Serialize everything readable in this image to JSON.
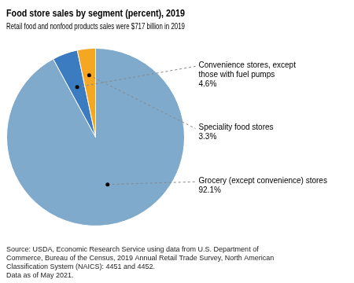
{
  "chart_data": {
    "type": "pie",
    "title": "Food store sales by segment (percent), 2019",
    "subtitle": "Retail food and nonfood products sales were $717 billion in 2019",
    "categories": [
      "Grocery (except convenience) stores",
      "Convenience stores, except\nthose with fuel pumps",
      "Speciality food stores"
    ],
    "values": [
      92.1,
      4.6,
      3.3
    ],
    "value_labels": [
      "92.1%",
      "4.6%",
      "3.3%"
    ],
    "colors": [
      "#7faacc",
      "#3b7bbf",
      "#f5a623"
    ],
    "data_labels": true,
    "legend": false,
    "annotations": [
      "Source: USDA, Economic Research Service using data from U.S. Department of\nCommerce, Bureau of the Census, 2019 Annual Retail Trade Survey, North American\nClassification System (NAICS): 4451 and 4452.\nData as of May 2021."
    ]
  }
}
